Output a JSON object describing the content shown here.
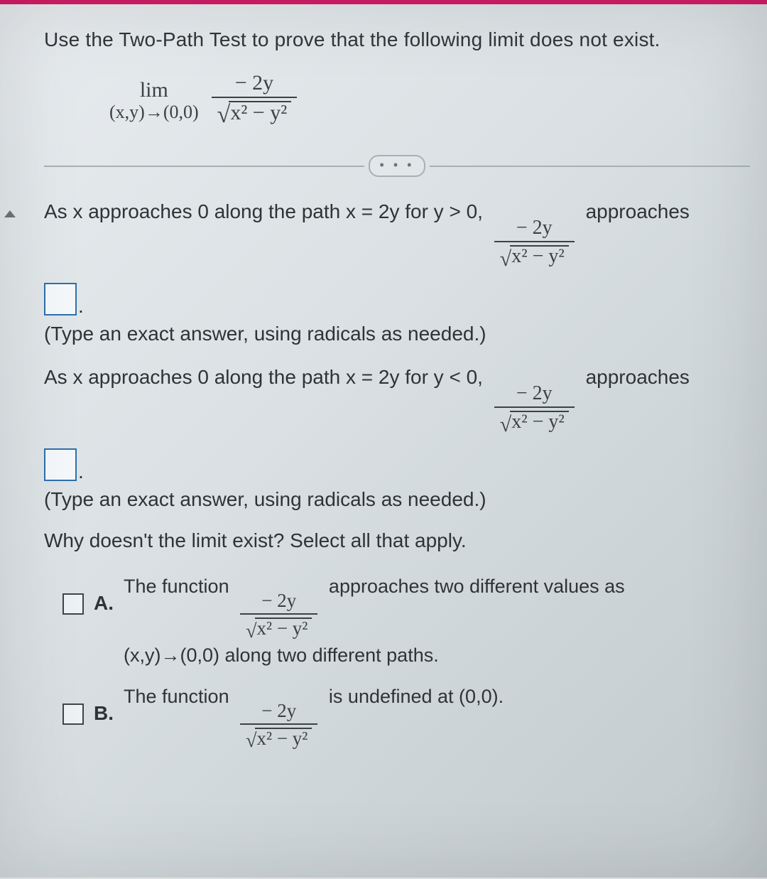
{
  "colors": {
    "accent_bar": "#d31d66",
    "text": "#2f3336",
    "math": "#3b4144",
    "divider": "#a9b0b4",
    "input_border": "#2f6fae",
    "checkbox_border": "#3f4548",
    "background_start": "#e8ecef",
    "background_end": "#c1c9cd"
  },
  "typography": {
    "body_fontsize_pt": 21,
    "math_family": "Cambria Math / Times",
    "title_weight": "normal"
  },
  "question": {
    "title": "Use the Two-Path Test to prove that the following limit does not exist.",
    "lim_label": "lim",
    "lim_subscript": "(x,y)→(0,0)",
    "frac_numerator": "− 2y",
    "frac_denom_inside_sqrt": "x² − y²"
  },
  "ellipsis": "• • •",
  "part1": {
    "prefix": "As x approaches 0 along the path x = 2y for y > 0,",
    "frac_num": "− 2y",
    "frac_denom": "x² − y²",
    "suffix": "approaches",
    "hint": "(Type an exact answer, using radicals as needed.)"
  },
  "part2": {
    "prefix": "As x approaches 0 along the path x = 2y for y < 0,",
    "frac_num": "− 2y",
    "frac_denom": "x² − y²",
    "suffix": "approaches",
    "hint": "(Type an exact answer, using radicals as needed.)"
  },
  "why_prompt": "Why doesn't the limit exist? Select all that apply.",
  "options": {
    "A": {
      "letter": "A.",
      "pre": "The function",
      "frac_num": "− 2y",
      "frac_denom": "x² − y²",
      "mid": "approaches two different values as",
      "line2": "(x,y)→(0,0) along two different paths."
    },
    "B": {
      "letter": "B.",
      "pre": "The function",
      "frac_num": "− 2y",
      "frac_denom": "x² − y²",
      "post": "is undefined at (0,0)."
    }
  }
}
